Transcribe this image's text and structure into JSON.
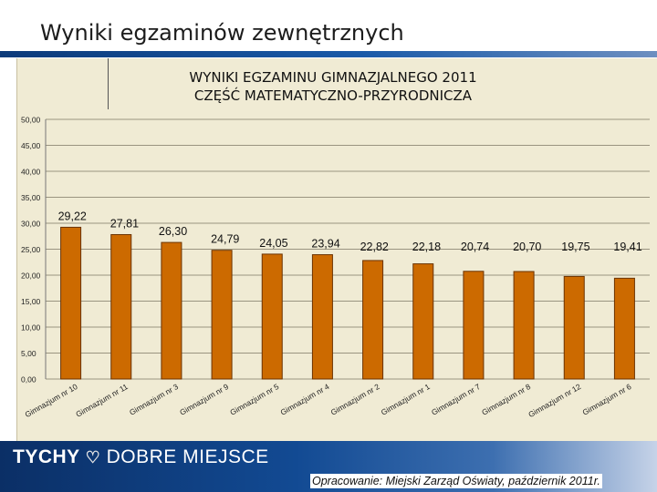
{
  "slide": {
    "title": "Wyniki egzaminów zewnętrznych"
  },
  "footer": {
    "brand_left": "TYCHY",
    "brand_right": "DOBRE MIEJSCE",
    "source": "Opracowanie: Miejski Zarząd Oświaty, październik 2011r."
  },
  "chart_data": {
    "type": "bar",
    "title": "WYNIKI EGZAMINU GIMNAZJALNEGO 2011",
    "subtitle": "CZĘŚĆ MATEMATYCZNO-PRZYRODNICZA",
    "categories": [
      "Gimnazjum nr 10",
      "Gimnazjum nr 11",
      "Gimnazjum nr 3",
      "Gimnazjum nr 9",
      "Gimnazjum nr 5",
      "Gimnazjum nr 4",
      "Gimnazjum nr 2",
      "Gimnazjum nr 1",
      "Gimnazjum nr 7",
      "Gimnazjum nr 8",
      "Gimnazjum nr 12",
      "Gimnazjum nr 6"
    ],
    "values": [
      29.22,
      27.81,
      26.3,
      24.79,
      24.05,
      23.94,
      22.82,
      22.18,
      20.74,
      20.7,
      19.75,
      19.41
    ],
    "value_labels": [
      "29,22",
      "27,81",
      "26,30",
      "24,79",
      "24,05",
      "23,94",
      "22,82",
      "22,18",
      "20,74",
      "20,70",
      "19,75",
      "19,41"
    ],
    "y_ticks": [
      "0,00",
      "5,00",
      "10,00",
      "15,00",
      "20,00",
      "25,00",
      "30,00",
      "35,00",
      "40,00",
      "45,00",
      "50,00"
    ],
    "ylim": [
      0,
      50
    ],
    "grid": true,
    "bar_color": "#cc6a00"
  }
}
